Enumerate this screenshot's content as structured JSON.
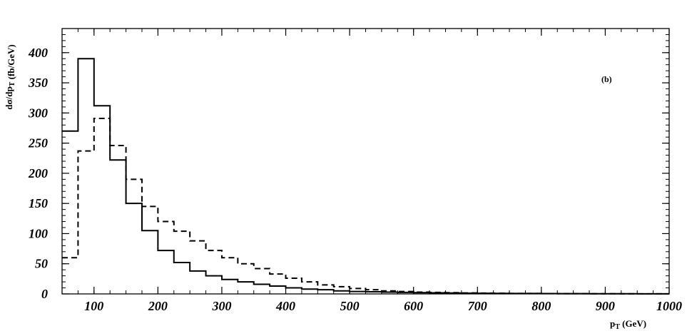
{
  "chart_data": {
    "type": "line",
    "step": true,
    "annotation": "(b)",
    "xlabel": {
      "main": "p",
      "sub": "T",
      "rest": " (GeV)"
    },
    "ylabel": "dσ/dp_T (fb/GeV)",
    "xlim": [
      50,
      1000
    ],
    "ylim": [
      0,
      440
    ],
    "x_ticks": [
      100,
      200,
      300,
      400,
      500,
      600,
      700,
      800,
      900,
      1000
    ],
    "y_ticks": [
      0,
      50,
      100,
      150,
      200,
      250,
      300,
      350,
      400
    ],
    "legend": "none",
    "grid": false,
    "bin_edges": [
      50,
      75,
      100,
      125,
      150,
      175,
      200,
      225,
      250,
      275,
      300,
      325,
      350,
      375,
      400,
      425,
      450,
      475,
      500,
      525,
      550,
      575,
      600,
      625,
      650,
      675,
      700,
      725,
      750,
      775,
      800,
      825,
      850,
      875,
      900,
      925,
      950,
      975,
      1000
    ],
    "series": [
      {
        "style": "solid",
        "values": [
          270,
          390,
          312,
          222,
          150,
          105,
          72,
          52,
          38,
          30,
          24,
          20,
          16,
          13,
          10,
          8,
          7,
          5,
          4,
          3.5,
          3,
          2.5,
          2,
          1.8,
          1.5,
          1.2,
          1,
          0.9,
          0.8,
          0.7,
          0.6,
          0.5,
          0.4,
          0.35,
          0.3,
          0.25,
          0.2,
          0.15
        ]
      },
      {
        "style": "dashed",
        "values": [
          60,
          237,
          291,
          246,
          190,
          145,
          120,
          104,
          88,
          72,
          60,
          50,
          42,
          33,
          26,
          20,
          15,
          12,
          9,
          7,
          5,
          4,
          3,
          2.5,
          2,
          1.6,
          1.3,
          1,
          0.8,
          0.7,
          0.6,
          0.5,
          0.4,
          0.3,
          0.25,
          0.2,
          0.15,
          0.1
        ]
      }
    ]
  }
}
